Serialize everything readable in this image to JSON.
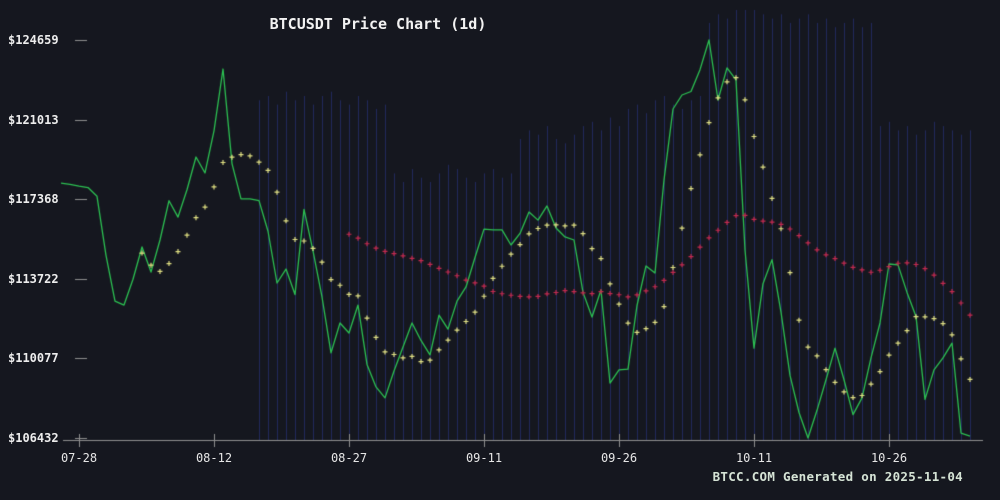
{
  "colors": {
    "background": "#15171f",
    "price_line": "#2cc152",
    "ma7_marker": "#e2e283",
    "ma30_marker": "#c62a4e",
    "bar_stripe": "#2e3890",
    "axis_line": "#8f8f8f",
    "tick_mark": "#8f8f8f",
    "title_text": "#f2f2f2",
    "axis_label_text": "#ededed",
    "footer_text": "#d5e3d5"
  },
  "chart_data": {
    "type": "line",
    "symbol": "BTCUSDT",
    "interval": "1d",
    "title": "BTCUSDT Price Chart (1d)",
    "footer": "BTCC.COM Generated on 2025-11-04",
    "grid": "off",
    "legend": "none",
    "num_points": 102,
    "x_tick_labels": [
      "07-28",
      "08-12",
      "08-27",
      "09-11",
      "09-26",
      "10-11",
      "10-26"
    ],
    "x_tick_indices": [
      2,
      17,
      32,
      47,
      62,
      77,
      92
    ],
    "y_tick_labels": [
      "$124659",
      "$121013",
      "$117368",
      "$113722",
      "$110077",
      "$106432"
    ],
    "y_tick_values": [
      124659,
      121013,
      117368,
      113722,
      110077,
      106432
    ],
    "ylim": [
      106432,
      124659
    ],
    "series": [
      {
        "name": "close_price",
        "style": "line",
        "color_key": "price_line",
        "values": [
          118100,
          118050,
          117970,
          117900,
          117500,
          114800,
          112700,
          112520,
          113700,
          115180,
          114030,
          115500,
          117300,
          116550,
          117800,
          119300,
          118570,
          120500,
          123330,
          119000,
          117380,
          117380,
          117300,
          115900,
          113530,
          114170,
          113000,
          116900,
          115000,
          112890,
          110330,
          111700,
          111240,
          112520,
          109800,
          108770,
          108270,
          109500,
          110600,
          111700,
          110900,
          110240,
          112060,
          111420,
          112700,
          113350,
          114700,
          116000,
          115960,
          115960,
          115270,
          115800,
          116780,
          116410,
          117060,
          116050,
          115640,
          115500,
          113100,
          111970,
          113210,
          108950,
          109550,
          109590,
          112500,
          114310,
          113990,
          118250,
          121500,
          122140,
          122300,
          123300,
          124660,
          121910,
          123380,
          122830,
          115040,
          110550,
          113500,
          114600,
          112200,
          109300,
          107600,
          106430,
          107700,
          109100,
          110550,
          109100,
          107500,
          108270,
          110100,
          111700,
          114400,
          114360,
          113100,
          112000,
          108200,
          109550,
          110100,
          110780,
          106660,
          106520
        ]
      },
      {
        "name": "ma7",
        "style": "plus_markers",
        "derived": "moving_average_of_close_price",
        "window": 7,
        "plot_from_index": 9,
        "color_key": "ma7_marker"
      },
      {
        "name": "ma30",
        "style": "plus_markers",
        "derived": "moving_average_of_close_price",
        "window": 30,
        "plot_from_index": 32,
        "color_key": "ma30_marker"
      }
    ],
    "background_vertical_bars": {
      "description": "faint dark-blue vertical bars rising from the x-axis, heights relative to plot height",
      "color_key": "bar_stripe",
      "relative_heights": [
        0,
        0,
        0,
        0,
        0,
        0,
        0,
        0,
        0,
        0,
        0,
        0,
        0,
        0,
        0,
        0,
        0,
        0,
        0,
        0,
        0,
        0,
        0.79,
        0.8,
        0.78,
        0.81,
        0.79,
        0.8,
        0.78,
        0.8,
        0.81,
        0.79,
        0.78,
        0.8,
        0.79,
        0.77,
        0.78,
        0.62,
        0.6,
        0.63,
        0.61,
        0.6,
        0.62,
        0.64,
        0.63,
        0.61,
        0.6,
        0.62,
        0.63,
        0.61,
        0.62,
        0.7,
        0.72,
        0.71,
        0.73,
        0.7,
        0.69,
        0.71,
        0.73,
        0.74,
        0.72,
        0.75,
        0.73,
        0.77,
        0.78,
        0.76,
        0.79,
        0.8,
        0.78,
        0.77,
        0.79,
        0.8,
        0.97,
        0.99,
        0.98,
        1.0,
        1.0,
        1.0,
        0.99,
        0.98,
        0.99,
        0.97,
        0.98,
        0.99,
        0.97,
        0.98,
        0.96,
        0.97,
        0.98,
        0.96,
        0.97,
        0.73,
        0.74,
        0.72,
        0.73,
        0.71,
        0.72,
        0.74,
        0.73,
        0.72,
        0.71,
        0.72
      ]
    }
  }
}
